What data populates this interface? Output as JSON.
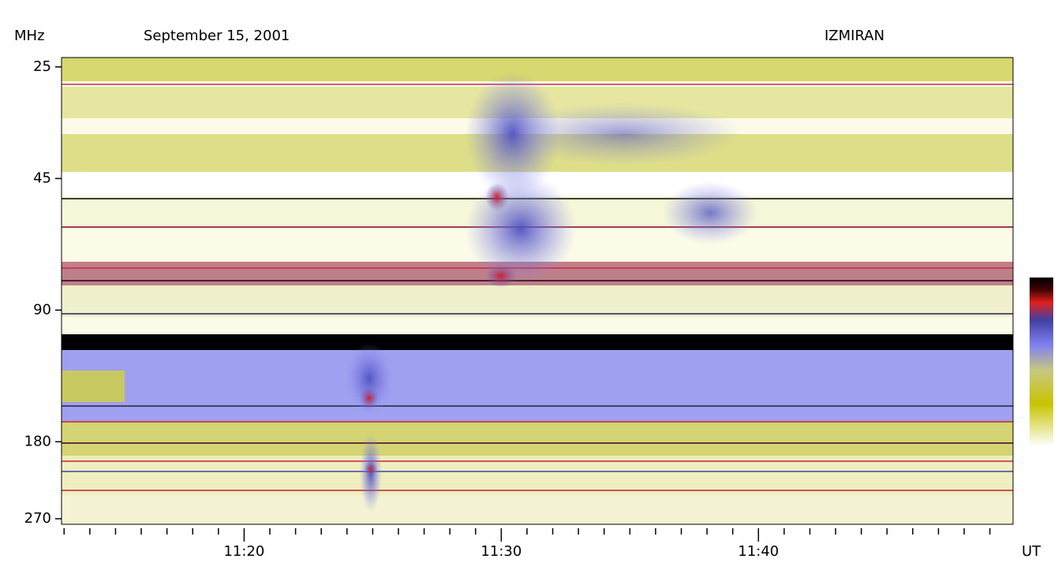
{
  "chart_data": {
    "type": "spectrogram",
    "title": "September 15, 2001",
    "source": "IZMIRAN",
    "ylabel": "MHz",
    "xlabel": "UT",
    "yscale": "log",
    "yinverted": true,
    "ylim": [
      23.8,
      278
    ],
    "yticks": [
      25,
      45,
      90,
      180,
      270
    ],
    "xlim": [
      672.9,
      709.9
    ],
    "xticks": [
      {
        "value": 680,
        "label": "11:20"
      },
      {
        "value": 690,
        "label": "11:30"
      },
      {
        "value": 700,
        "label": "11:40"
      }
    ],
    "xminorticks": [
      673,
      674,
      675,
      676,
      677,
      678,
      679,
      681,
      682,
      683,
      684,
      685,
      686,
      687,
      688,
      689,
      691,
      692,
      693,
      694,
      695,
      696,
      697,
      698,
      699,
      701,
      702,
      703,
      704,
      705,
      706,
      707,
      708,
      709
    ]
  }
}
